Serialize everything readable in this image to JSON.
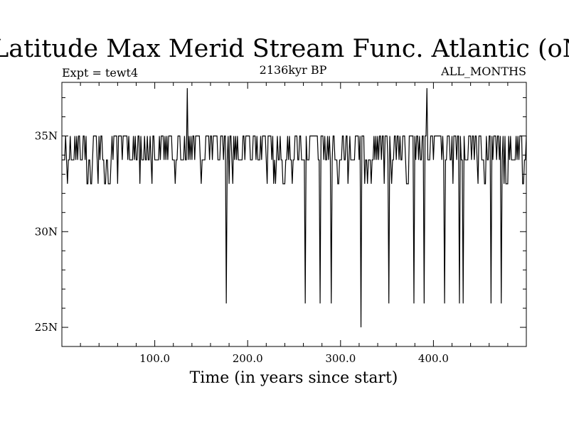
{
  "chart_data": {
    "type": "line",
    "title": "Latitude Max Merid Stream Func. Atlantic (oN)",
    "left_label": "Expt = tewt4",
    "center_label": "2136kyr BP",
    "right_label": "ALL_MONTHS",
    "xlabel": "Time (in years since start)",
    "ylabel": "",
    "xlim": [
      0,
      500
    ],
    "ylim": [
      24.0,
      37.8
    ],
    "xticks": [
      {
        "value": 100,
        "label": "100.0"
      },
      {
        "value": 200,
        "label": "200.0"
      },
      {
        "value": 300,
        "label": "300.0"
      },
      {
        "value": 400,
        "label": "400.0"
      }
    ],
    "yticks": [
      {
        "value": 25,
        "label": "25N"
      },
      {
        "value": 30,
        "label": "30N"
      },
      {
        "value": 35,
        "label": "35N"
      }
    ],
    "grid": false,
    "series": [
      {
        "baseline": 33.75,
        "levels": [
          32.5,
          33.75,
          35.0
        ],
        "spikes": [
          {
            "x": 135,
            "y": 37.5
          },
          {
            "x": 177,
            "y": 26.25
          },
          {
            "x": 262,
            "y": 26.25
          },
          {
            "x": 278,
            "y": 26.25
          },
          {
            "x": 290,
            "y": 26.25
          },
          {
            "x": 322,
            "y": 25.0
          },
          {
            "x": 352,
            "y": 26.25
          },
          {
            "x": 379,
            "y": 26.25
          },
          {
            "x": 390,
            "y": 26.25
          },
          {
            "x": 393,
            "y": 37.5
          },
          {
            "x": 412,
            "y": 26.25
          },
          {
            "x": 428,
            "y": 26.25
          },
          {
            "x": 432,
            "y": 26.25
          },
          {
            "x": 462,
            "y": 26.25
          },
          {
            "x": 473,
            "y": 26.25
          }
        ],
        "low_runs": [
          [
            27,
            33
          ],
          [
            45,
            52
          ],
          [
            120,
            121
          ],
          [
            238,
            240
          ],
          [
            296,
            300
          ],
          [
            371,
            373
          ],
          [
            478,
            480
          ],
          [
            497,
            498
          ]
        ]
      }
    ]
  }
}
